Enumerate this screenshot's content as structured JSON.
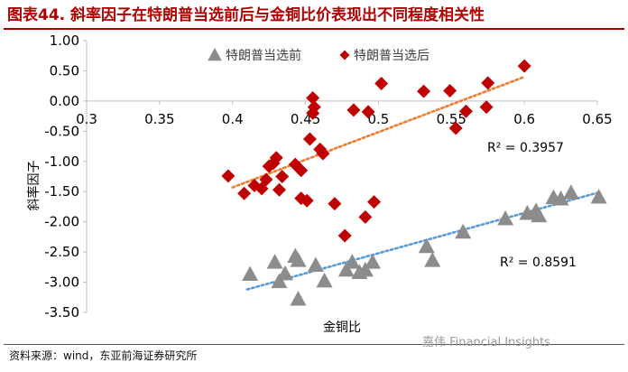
{
  "header": {
    "title": "图表44. 斜率因子在特朗普当选前后与金铜比价表现出不同程度相关性"
  },
  "footer": {
    "source": "资料来源：wind，东亚前海证券研究所",
    "watermark": "嘉伟 Financial Insights"
  },
  "colors": {
    "title": "#b00000",
    "before": "#8c8c8c",
    "after": "#c00000",
    "trend_before": "#5b9bd5",
    "trend_after": "#ed7d31"
  },
  "chart_data": {
    "type": "scatter",
    "title": "",
    "xlabel": "金铜比",
    "ylabel": "斜率因子",
    "xlim": [
      0.3,
      0.65
    ],
    "ylim": [
      -3.5,
      1.0
    ],
    "xticks": [
      "0.3",
      "0.35",
      "0.4",
      "0.45",
      "0.5",
      "0.55",
      "0.6",
      "0.65"
    ],
    "yticks": [
      "1.00",
      "0.50",
      "0.00",
      "-0.50",
      "-1.00",
      "-1.50",
      "-2.00",
      "-2.50",
      "-3.00",
      "-3.50"
    ],
    "grid": false,
    "legend_position": "top",
    "series": [
      {
        "name": "特朗普当选前",
        "marker": "triangle",
        "color": "#8c8c8c",
        "points": [
          [
            0.412,
            -2.87
          ],
          [
            0.429,
            -2.67
          ],
          [
            0.432,
            -2.99
          ],
          [
            0.436,
            -2.86
          ],
          [
            0.443,
            -2.57
          ],
          [
            0.445,
            -2.64
          ],
          [
            0.445,
            -3.28
          ],
          [
            0.457,
            -2.72
          ],
          [
            0.463,
            -2.98
          ],
          [
            0.478,
            -2.8
          ],
          [
            0.482,
            -2.67
          ],
          [
            0.487,
            -2.84
          ],
          [
            0.491,
            -2.8
          ],
          [
            0.496,
            -2.67
          ],
          [
            0.533,
            -2.41
          ],
          [
            0.537,
            -2.64
          ],
          [
            0.558,
            -2.17
          ],
          [
            0.587,
            -1.95
          ],
          [
            0.602,
            -1.86
          ],
          [
            0.608,
            -1.82
          ],
          [
            0.61,
            -1.9
          ],
          [
            0.62,
            -1.6
          ],
          [
            0.625,
            -1.62
          ],
          [
            0.632,
            -1.52
          ],
          [
            0.651,
            -1.59
          ]
        ],
        "trendline": {
          "start": [
            0.41,
            -3.12
          ],
          "end": [
            0.65,
            -1.52
          ],
          "r2_label": "R² = 0.8591"
        }
      },
      {
        "name": "特朗普当选后",
        "marker": "diamond",
        "color": "#c00000",
        "points": [
          [
            0.397,
            -1.24
          ],
          [
            0.408,
            -1.53
          ],
          [
            0.415,
            -1.4
          ],
          [
            0.42,
            -1.45
          ],
          [
            0.423,
            -1.3
          ],
          [
            0.425,
            -1.08
          ],
          [
            0.428,
            -1.03
          ],
          [
            0.43,
            -0.94
          ],
          [
            0.432,
            -1.47
          ],
          [
            0.434,
            -1.25
          ],
          [
            0.443,
            -1.05
          ],
          [
            0.447,
            -1.15
          ],
          [
            0.447,
            -1.61
          ],
          [
            0.451,
            -1.65
          ],
          [
            0.453,
            -0.63
          ],
          [
            0.455,
            0.05
          ],
          [
            0.456,
            -0.1
          ],
          [
            0.455,
            -0.2
          ],
          [
            0.46,
            -0.8
          ],
          [
            0.462,
            -0.87
          ],
          [
            0.47,
            -1.7
          ],
          [
            0.477,
            -2.23
          ],
          [
            0.483,
            -0.15
          ],
          [
            0.491,
            -1.92
          ],
          [
            0.493,
            -0.18
          ],
          [
            0.497,
            -1.67
          ],
          [
            0.502,
            0.29
          ],
          [
            0.531,
            0.16
          ],
          [
            0.549,
            0.17
          ],
          [
            0.553,
            -0.45
          ],
          [
            0.56,
            -0.17
          ],
          [
            0.574,
            -0.1
          ],
          [
            0.575,
            0.3
          ],
          [
            0.6,
            0.58
          ]
        ],
        "trendline": {
          "start": [
            0.4,
            -1.43
          ],
          "end": [
            0.6,
            0.4
          ],
          "r2_label": "R² = 0.3957"
        }
      }
    ]
  }
}
